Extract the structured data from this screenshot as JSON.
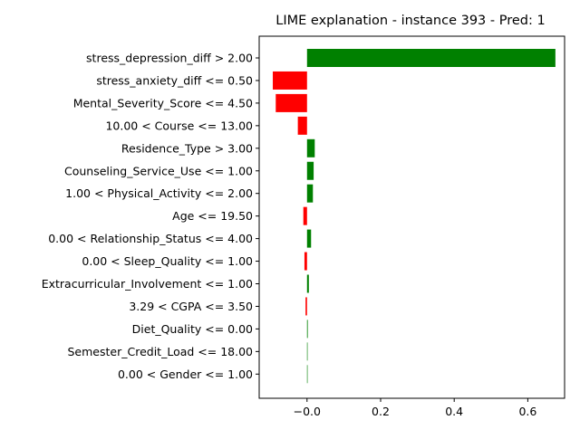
{
  "chart_data": {
    "type": "bar",
    "orientation": "horizontal",
    "title": "LIME explanation - instance 393 - Pred: 1",
    "xlabel": "",
    "ylabel": "",
    "xlim": [
      -0.13,
      0.7
    ],
    "xticks": [
      "−0.0",
      "0.2",
      "0.4",
      "0.6"
    ],
    "xtick_values": [
      0.0,
      0.2,
      0.4,
      0.6
    ],
    "grid": false,
    "positive_color": "#008000",
    "negative_color": "#ff0000",
    "bars": [
      {
        "label": "stress_depression_diff > 2.00",
        "value": 0.675
      },
      {
        "label": "stress_anxiety_diff <= 0.50",
        "value": -0.093
      },
      {
        "label": "Mental_Severity_Score <= 4.50",
        "value": -0.085
      },
      {
        "label": "10.00 < Course <= 13.00",
        "value": -0.025
      },
      {
        "label": "Residence_Type > 3.00",
        "value": 0.021
      },
      {
        "label": "Counseling_Service_Use <= 1.00",
        "value": 0.018
      },
      {
        "label": "1.00 < Physical_Activity <= 2.00",
        "value": 0.016
      },
      {
        "label": "Age <= 19.50",
        "value": -0.01
      },
      {
        "label": "0.00 < Relationship_Status <= 4.00",
        "value": 0.011
      },
      {
        "label": "0.00 < Sleep_Quality <= 1.00",
        "value": -0.007
      },
      {
        "label": "Extracurricular_Involvement <= 1.00",
        "value": 0.005
      },
      {
        "label": "3.29 < CGPA <= 3.50",
        "value": -0.004
      },
      {
        "label": "Diet_Quality <= 0.00",
        "value": 0.002
      },
      {
        "label": "Semester_Credit_Load <= 18.00",
        "value": 0.001
      },
      {
        "label": "0.00 < Gender <= 1.00",
        "value": 0.0
      }
    ]
  }
}
